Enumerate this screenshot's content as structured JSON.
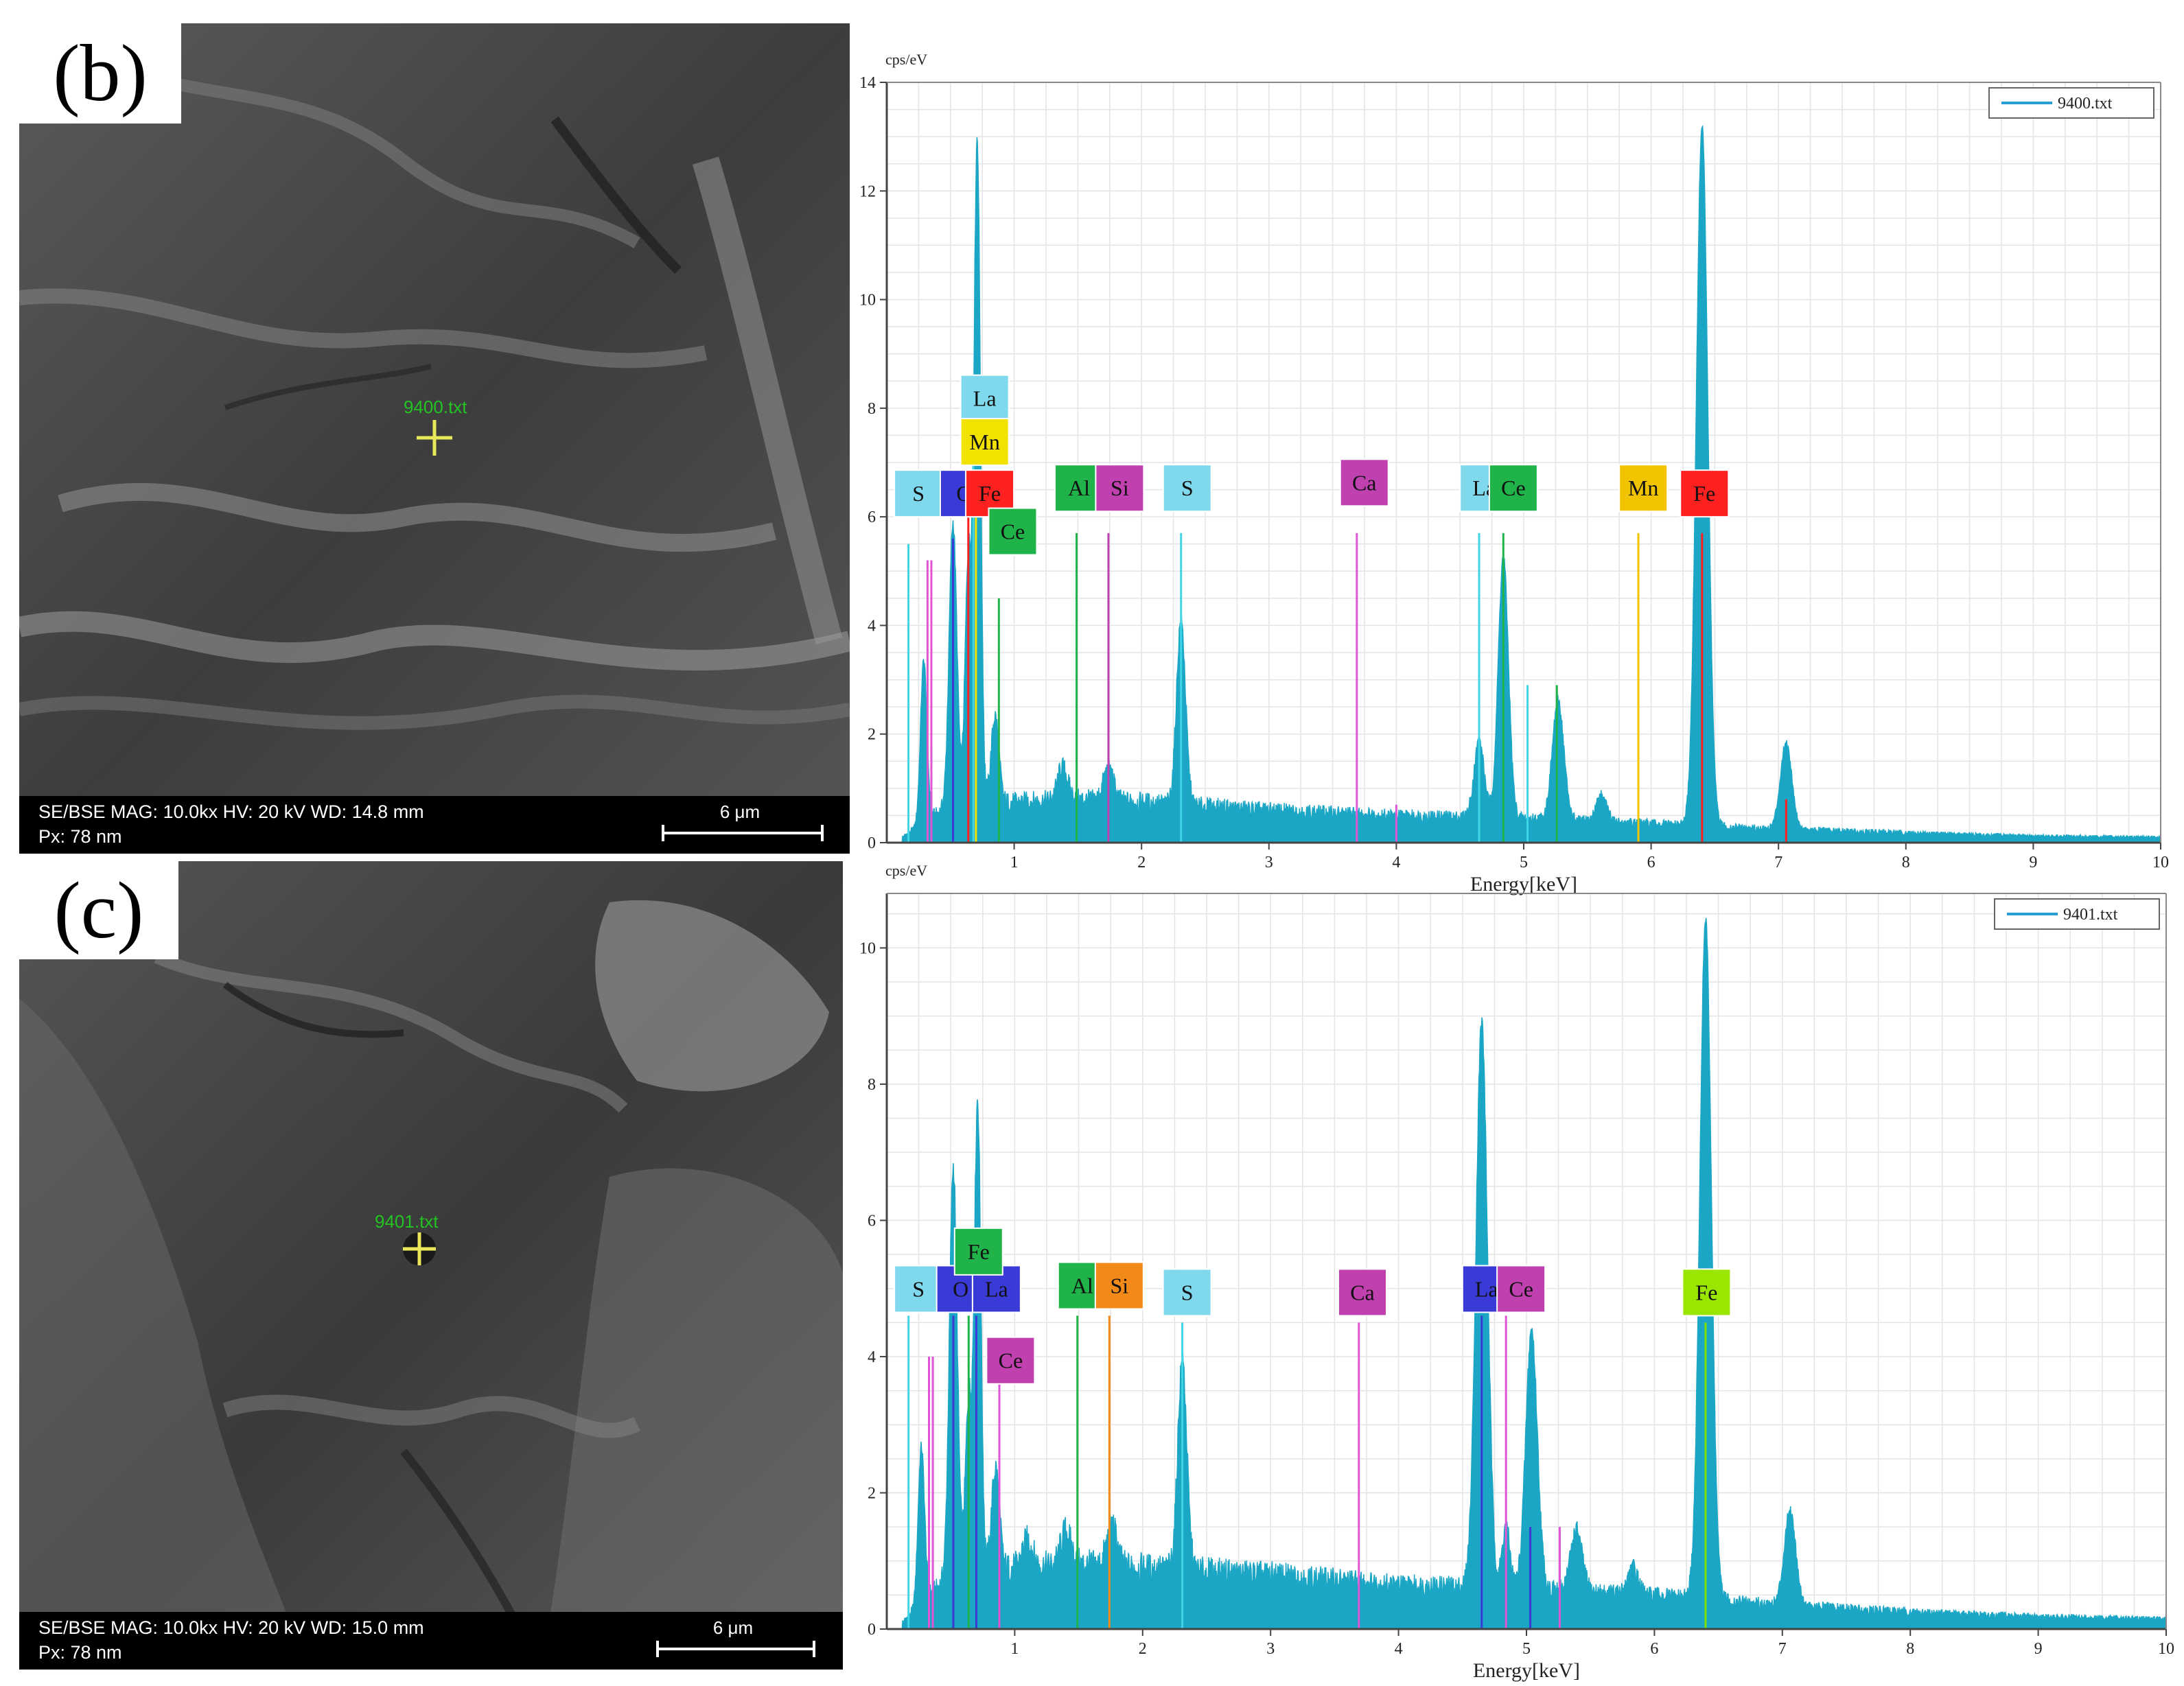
{
  "panels": [
    {
      "label": "(b)",
      "sem": {
        "spot_label": "9400.txt",
        "info_line1": "SE/BSE   MAG: 10.0kx   HV: 20 kV   WD: 14.8 mm",
        "info_line2": "Px: 78 nm",
        "scale_label": "6 μm"
      }
    },
    {
      "label": "(c)",
      "sem": {
        "spot_label": "9401.txt",
        "info_line1": "SE/BSE   MAG: 10.0kx   HV: 20 kV   WD: 15.0 mm",
        "info_line2": "Px: 78 nm",
        "scale_label": "6 μm"
      }
    }
  ],
  "chart_data": [
    {
      "type": "area",
      "ylabel": "cps/eV",
      "xlabel": "Energy[keV]",
      "legend": "9400.txt",
      "legend_position": "top-right",
      "grid": true,
      "xlim": [
        0,
        10
      ],
      "ylim": [
        0,
        14
      ],
      "x_ticks": [
        1,
        2,
        3,
        4,
        5,
        6,
        7,
        8,
        9,
        10
      ],
      "y_ticks": [
        0,
        2,
        4,
        6,
        8,
        10,
        12,
        14
      ],
      "series_color": "#1aa6c4",
      "baseline": [
        [
          0.12,
          0.1
        ],
        [
          0.5,
          0.7
        ],
        [
          1.0,
          0.75
        ],
        [
          1.5,
          0.8
        ],
        [
          2.0,
          0.75
        ],
        [
          3.0,
          0.6
        ],
        [
          4.0,
          0.5
        ],
        [
          5.0,
          0.45
        ],
        [
          6.0,
          0.35
        ],
        [
          7.0,
          0.25
        ],
        [
          8.0,
          0.18
        ],
        [
          9.0,
          0.12
        ],
        [
          10.0,
          0.1
        ]
      ],
      "peaks": [
        {
          "x": 0.29,
          "height": 3.0,
          "width": 0.025
        },
        {
          "x": 0.52,
          "height": 5.2,
          "width": 0.03
        },
        {
          "x": 0.64,
          "height": 4.5,
          "width": 0.025
        },
        {
          "x": 0.71,
          "height": 12.2,
          "width": 0.025
        },
        {
          "x": 0.85,
          "height": 1.6,
          "width": 0.03
        },
        {
          "x": 1.38,
          "height": 0.6,
          "width": 0.04
        },
        {
          "x": 1.74,
          "height": 0.6,
          "width": 0.04
        },
        {
          "x": 2.31,
          "height": 3.4,
          "width": 0.035
        },
        {
          "x": 4.65,
          "height": 1.4,
          "width": 0.04
        },
        {
          "x": 4.84,
          "height": 4.8,
          "width": 0.04
        },
        {
          "x": 5.27,
          "height": 2.2,
          "width": 0.045
        },
        {
          "x": 5.61,
          "height": 0.5,
          "width": 0.04
        },
        {
          "x": 6.4,
          "height": 12.9,
          "width": 0.045
        },
        {
          "x": 7.06,
          "height": 1.6,
          "width": 0.045
        }
      ],
      "element_lines": [
        {
          "x": 0.17,
          "height": 5.5,
          "color": "#3fd4e6"
        },
        {
          "x": 0.32,
          "height": 5.2,
          "color": "#e055d4"
        },
        {
          "x": 0.35,
          "height": 5.2,
          "color": "#e055d4"
        },
        {
          "x": 0.52,
          "height": 5.6,
          "color": "#3a3ad6"
        },
        {
          "x": 0.64,
          "height": 6.0,
          "color": "#ff2020"
        },
        {
          "x": 0.68,
          "height": 7.4,
          "color": "#3fd4e6"
        },
        {
          "x": 0.7,
          "height": 6.4,
          "color": "#f2e200"
        },
        {
          "x": 0.88,
          "height": 4.5,
          "color": "#1fb34a"
        },
        {
          "x": 1.49,
          "height": 5.7,
          "color": "#1fb34a"
        },
        {
          "x": 1.74,
          "height": 5.7,
          "color": "#c040b0"
        },
        {
          "x": 2.31,
          "height": 5.7,
          "color": "#3fd4e6"
        },
        {
          "x": 3.69,
          "height": 5.7,
          "color": "#e055d4"
        },
        {
          "x": 4.0,
          "height": 0.7,
          "color": "#e055d4"
        },
        {
          "x": 4.65,
          "height": 5.7,
          "color": "#3fd4e6"
        },
        {
          "x": 4.84,
          "height": 5.7,
          "color": "#1fb34a"
        },
        {
          "x": 5.03,
          "height": 2.9,
          "color": "#3fd4e6"
        },
        {
          "x": 5.26,
          "height": 2.9,
          "color": "#1fb34a"
        },
        {
          "x": 5.9,
          "height": 5.7,
          "color": "#f2c400"
        },
        {
          "x": 6.4,
          "height": 5.7,
          "color": "#ff2020"
        },
        {
          "x": 7.06,
          "height": 0.8,
          "color": "#ff2020"
        }
      ],
      "element_labels": [
        {
          "text": "S",
          "x": 0.06,
          "y": 6.0,
          "color": "#7fd8ec"
        },
        {
          "text": "O",
          "x": 0.42,
          "y": 6.0,
          "color": "#3a3ad6"
        },
        {
          "text": "Fe",
          "x": 0.62,
          "y": 6.0,
          "color": "#ff2020"
        },
        {
          "text": "La",
          "x": 0.58,
          "y": 7.75,
          "color": "#7fd8ec"
        },
        {
          "text": "Mn",
          "x": 0.58,
          "y": 6.95,
          "color": "#f2e200"
        },
        {
          "text": "Ce",
          "x": 0.8,
          "y": 5.3,
          "color": "#1fb34a"
        },
        {
          "text": "Al",
          "x": 1.32,
          "y": 6.1,
          "color": "#1fb34a"
        },
        {
          "text": "Si",
          "x": 1.64,
          "y": 6.1,
          "color": "#c040b0"
        },
        {
          "text": "S",
          "x": 2.17,
          "y": 6.1,
          "color": "#7fd8ec"
        },
        {
          "text": "Ca",
          "x": 3.56,
          "y": 6.2,
          "color": "#c040b0"
        },
        {
          "text": "La",
          "x": 4.5,
          "y": 6.1,
          "color": "#7fd8ec"
        },
        {
          "text": "Ce",
          "x": 4.73,
          "y": 6.1,
          "color": "#1fb34a"
        },
        {
          "text": "Mn",
          "x": 5.75,
          "y": 6.1,
          "color": "#f2c400"
        },
        {
          "text": "Fe",
          "x": 6.23,
          "y": 6.0,
          "color": "#ff2020"
        }
      ]
    },
    {
      "type": "area",
      "ylabel": "cps/eV",
      "xlabel": "Energy[keV]",
      "legend": "9401.txt",
      "legend_position": "top-right",
      "grid": true,
      "xlim": [
        0,
        10
      ],
      "ylim": [
        0,
        10.8
      ],
      "x_ticks": [
        1,
        2,
        3,
        4,
        5,
        6,
        7,
        8,
        9,
        10
      ],
      "y_ticks": [
        0,
        2,
        4,
        6,
        8,
        10
      ],
      "series_color": "#1aa6c4",
      "baseline": [
        [
          0.12,
          0.1
        ],
        [
          0.5,
          0.8
        ],
        [
          1.0,
          0.9
        ],
        [
          1.5,
          0.95
        ],
        [
          2.0,
          0.9
        ],
        [
          3.0,
          0.8
        ],
        [
          4.0,
          0.65
        ],
        [
          5.0,
          0.6
        ],
        [
          6.0,
          0.5
        ],
        [
          7.0,
          0.35
        ],
        [
          8.0,
          0.25
        ],
        [
          9.0,
          0.18
        ],
        [
          10.0,
          0.15
        ]
      ],
      "peaks": [
        {
          "x": 0.27,
          "height": 2.3,
          "width": 0.025
        },
        {
          "x": 0.52,
          "height": 6.0,
          "width": 0.03
        },
        {
          "x": 0.64,
          "height": 2.5,
          "width": 0.025
        },
        {
          "x": 0.71,
          "height": 6.9,
          "width": 0.025
        },
        {
          "x": 0.85,
          "height": 1.5,
          "width": 0.03
        },
        {
          "x": 1.1,
          "height": 0.4,
          "width": 0.04
        },
        {
          "x": 1.4,
          "height": 0.5,
          "width": 0.04
        },
        {
          "x": 1.76,
          "height": 0.6,
          "width": 0.04
        },
        {
          "x": 2.31,
          "height": 3.1,
          "width": 0.035
        },
        {
          "x": 4.65,
          "height": 8.3,
          "width": 0.045
        },
        {
          "x": 4.84,
          "height": 0.9,
          "width": 0.03
        },
        {
          "x": 5.04,
          "height": 3.8,
          "width": 0.045
        },
        {
          "x": 5.39,
          "height": 0.9,
          "width": 0.045
        },
        {
          "x": 5.83,
          "height": 0.4,
          "width": 0.04
        },
        {
          "x": 6.4,
          "height": 10.0,
          "width": 0.045
        },
        {
          "x": 7.06,
          "height": 1.4,
          "width": 0.045
        }
      ],
      "element_lines": [
        {
          "x": 0.17,
          "height": 4.6,
          "color": "#3fd4e6"
        },
        {
          "x": 0.33,
          "height": 4.0,
          "color": "#e055d4"
        },
        {
          "x": 0.36,
          "height": 4.0,
          "color": "#e055d4"
        },
        {
          "x": 0.52,
          "height": 4.6,
          "color": "#3a3ad6"
        },
        {
          "x": 0.64,
          "height": 4.6,
          "color": "#1fb34a"
        },
        {
          "x": 0.7,
          "height": 4.6,
          "color": "#3a3ad6"
        },
        {
          "x": 0.88,
          "height": 3.6,
          "color": "#e055d4"
        },
        {
          "x": 1.49,
          "height": 4.6,
          "color": "#1fb34a"
        },
        {
          "x": 1.74,
          "height": 4.6,
          "color": "#f28a1a"
        },
        {
          "x": 2.31,
          "height": 4.5,
          "color": "#3fd4e6"
        },
        {
          "x": 3.69,
          "height": 4.5,
          "color": "#e055d4"
        },
        {
          "x": 4.65,
          "height": 4.6,
          "color": "#3a3ad6"
        },
        {
          "x": 4.84,
          "height": 4.6,
          "color": "#e055d4"
        },
        {
          "x": 5.03,
          "height": 1.5,
          "color": "#3a3ad6"
        },
        {
          "x": 5.26,
          "height": 1.5,
          "color": "#e055d4"
        },
        {
          "x": 6.4,
          "height": 4.5,
          "color": "#7ee000"
        }
      ],
      "element_labels": [
        {
          "text": "S",
          "x": 0.06,
          "y": 4.65,
          "color": "#7fd8ec"
        },
        {
          "text": "O",
          "x": 0.39,
          "y": 4.65,
          "color": "#3a3ad6"
        },
        {
          "text": "La",
          "x": 0.67,
          "y": 4.65,
          "color": "#3a3ad6"
        },
        {
          "text": "Fe",
          "x": 0.53,
          "y": 5.2,
          "color": "#1fb34a"
        },
        {
          "text": "Ce",
          "x": 0.78,
          "y": 3.6,
          "color": "#c040b0"
        },
        {
          "text": "Al",
          "x": 1.34,
          "y": 4.7,
          "color": "#1fb34a"
        },
        {
          "text": "Si",
          "x": 1.63,
          "y": 4.7,
          "color": "#f28a1a"
        },
        {
          "text": "S",
          "x": 2.16,
          "y": 4.6,
          "color": "#7fd8ec"
        },
        {
          "text": "Ca",
          "x": 3.53,
          "y": 4.6,
          "color": "#c040b0"
        },
        {
          "text": "La",
          "x": 4.5,
          "y": 4.65,
          "color": "#3a3ad6"
        },
        {
          "text": "Ce",
          "x": 4.77,
          "y": 4.65,
          "color": "#c040b0"
        },
        {
          "text": "Fe",
          "x": 6.22,
          "y": 4.6,
          "color": "#9ae600"
        }
      ]
    }
  ]
}
